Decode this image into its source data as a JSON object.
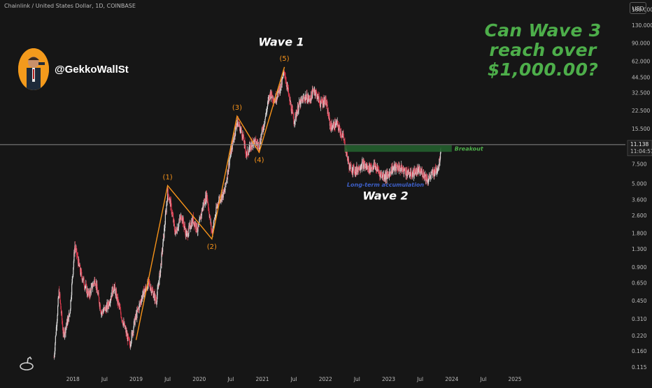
{
  "header": {
    "symbol": "Chainlink / United States Dollar, 1D, COINBASE",
    "currency": "USD"
  },
  "headline": {
    "line1": "Can Wave 3 reach over",
    "line2": "$1,000.00?"
  },
  "author": {
    "handle": "@GekkoWallSt"
  },
  "price_marker": {
    "price": "11.138",
    "countdown": "11:04:57"
  },
  "colors": {
    "background": "#161616",
    "up": "#d9d9d9",
    "down": "#e0394d",
    "wave": "#f7931a",
    "accent_green": "#4dae4a",
    "breakout_zone": "#245f2e",
    "annotation_blue": "#3d5fc7"
  },
  "chart_data": {
    "type": "candlestick",
    "scale": "log",
    "ylim": [
      0.11,
      200
    ],
    "y_ticks": [
      "180.000",
      "130.000",
      "90.000",
      "62.000",
      "44.500",
      "32.500",
      "22.500",
      "15.500",
      "11.138",
      "7.500",
      "5.000",
      "3.600",
      "2.600",
      "1.800",
      "1.300",
      "0.900",
      "0.650",
      "0.450",
      "0.310",
      "0.220",
      "0.160",
      "0.115"
    ],
    "x_ticks": [
      {
        "label": "2018",
        "t": 2018.0
      },
      {
        "label": "Jul",
        "t": 2018.5
      },
      {
        "label": "2019",
        "t": 2019.0
      },
      {
        "label": "Jul",
        "t": 2019.5
      },
      {
        "label": "2020",
        "t": 2020.0
      },
      {
        "label": "Jul",
        "t": 2020.5
      },
      {
        "label": "2021",
        "t": 2021.0
      },
      {
        "label": "Jul",
        "t": 2021.5
      },
      {
        "label": "2022",
        "t": 2022.0
      },
      {
        "label": "Jul",
        "t": 2022.5
      },
      {
        "label": "2023",
        "t": 2023.0
      },
      {
        "label": "Jul",
        "t": 2023.5
      },
      {
        "label": "2024",
        "t": 2024.0
      },
      {
        "label": "Jul",
        "t": 2024.5
      },
      {
        "label": "2025",
        "t": 2025.0
      }
    ],
    "price_path": [
      [
        2017.7,
        0.14
      ],
      [
        2017.78,
        0.55
      ],
      [
        2017.85,
        0.22
      ],
      [
        2017.95,
        0.35
      ],
      [
        2018.03,
        1.4
      ],
      [
        2018.12,
        0.8
      ],
      [
        2018.25,
        0.5
      ],
      [
        2018.35,
        0.7
      ],
      [
        2018.45,
        0.35
      ],
      [
        2018.55,
        0.4
      ],
      [
        2018.65,
        0.6
      ],
      [
        2018.8,
        0.28
      ],
      [
        2018.9,
        0.18
      ],
      [
        2018.98,
        0.3
      ],
      [
        2019.1,
        0.5
      ],
      [
        2019.2,
        0.65
      ],
      [
        2019.32,
        0.45
      ],
      [
        2019.38,
        0.8
      ],
      [
        2019.45,
        2.0
      ],
      [
        2019.5,
        4.2
      ],
      [
        2019.55,
        3.2
      ],
      [
        2019.62,
        1.8
      ],
      [
        2019.72,
        2.6
      ],
      [
        2019.8,
        1.7
      ],
      [
        2019.9,
        2.4
      ],
      [
        2019.98,
        1.9
      ],
      [
        2020.05,
        3.0
      ],
      [
        2020.12,
        4.0
      ],
      [
        2020.2,
        1.8
      ],
      [
        2020.3,
        3.5
      ],
      [
        2020.4,
        4.2
      ],
      [
        2020.5,
        9.5
      ],
      [
        2020.6,
        18.0
      ],
      [
        2020.68,
        14.0
      ],
      [
        2020.75,
        9.0
      ],
      [
        2020.85,
        12.0
      ],
      [
        2020.95,
        11.0
      ],
      [
        2021.05,
        20.0
      ],
      [
        2021.12,
        32.0
      ],
      [
        2021.2,
        28.0
      ],
      [
        2021.3,
        38.0
      ],
      [
        2021.35,
        50.0
      ],
      [
        2021.42,
        30.0
      ],
      [
        2021.5,
        18.0
      ],
      [
        2021.58,
        25.0
      ],
      [
        2021.68,
        30.0
      ],
      [
        2021.75,
        28.0
      ],
      [
        2021.82,
        35.0
      ],
      [
        2021.92,
        26.0
      ],
      [
        2022.0,
        28.0
      ],
      [
        2022.08,
        16.0
      ],
      [
        2022.18,
        17.0
      ],
      [
        2022.28,
        13.0
      ],
      [
        2022.38,
        7.0
      ],
      [
        2022.48,
        6.5
      ],
      [
        2022.58,
        7.5
      ],
      [
        2022.68,
        6.8
      ],
      [
        2022.78,
        7.2
      ],
      [
        2022.88,
        6.0
      ],
      [
        2022.98,
        5.8
      ],
      [
        2023.05,
        6.8
      ],
      [
        2023.15,
        7.0
      ],
      [
        2023.25,
        6.5
      ],
      [
        2023.35,
        6.0
      ],
      [
        2023.45,
        6.5
      ],
      [
        2023.55,
        6.2
      ],
      [
        2023.62,
        5.4
      ],
      [
        2023.7,
        6.2
      ],
      [
        2023.75,
        6.5
      ],
      [
        2023.8,
        7.5
      ],
      [
        2023.83,
        11.0
      ]
    ],
    "wave_counts": [
      {
        "label": "(1)",
        "t": 2019.5,
        "price": 4.8,
        "pos": "above"
      },
      {
        "label": "(2)",
        "t": 2020.2,
        "price": 1.6,
        "pos": "below"
      },
      {
        "label": "(3)",
        "t": 2020.6,
        "price": 20.0,
        "pos": "above"
      },
      {
        "label": "(4)",
        "t": 2020.95,
        "price": 9.5,
        "pos": "below"
      },
      {
        "label": "(5)",
        "t": 2021.35,
        "price": 55.0,
        "pos": "above"
      }
    ],
    "wave_line": [
      [
        2019.0,
        0.2
      ],
      [
        2019.5,
        4.8
      ],
      [
        2020.2,
        1.6
      ],
      [
        2020.6,
        20.0
      ],
      [
        2020.95,
        9.5
      ],
      [
        2021.35,
        55.0
      ]
    ],
    "breakout_zone": {
      "t_start": 2022.3,
      "t_end": 2024.0,
      "price_low": 9.6,
      "price_high": 11.0,
      "label": "Breakout"
    },
    "current_price": 11.138,
    "annotations": [
      {
        "text": "Wave 1",
        "t": 2021.3,
        "price": 85.0,
        "style": "big"
      },
      {
        "text": "Wave 2",
        "t": 2022.95,
        "price": 3.6,
        "style": "big"
      },
      {
        "text": "Long-term accumulation",
        "t": 2022.95,
        "price": 4.7,
        "style": "small"
      }
    ]
  }
}
